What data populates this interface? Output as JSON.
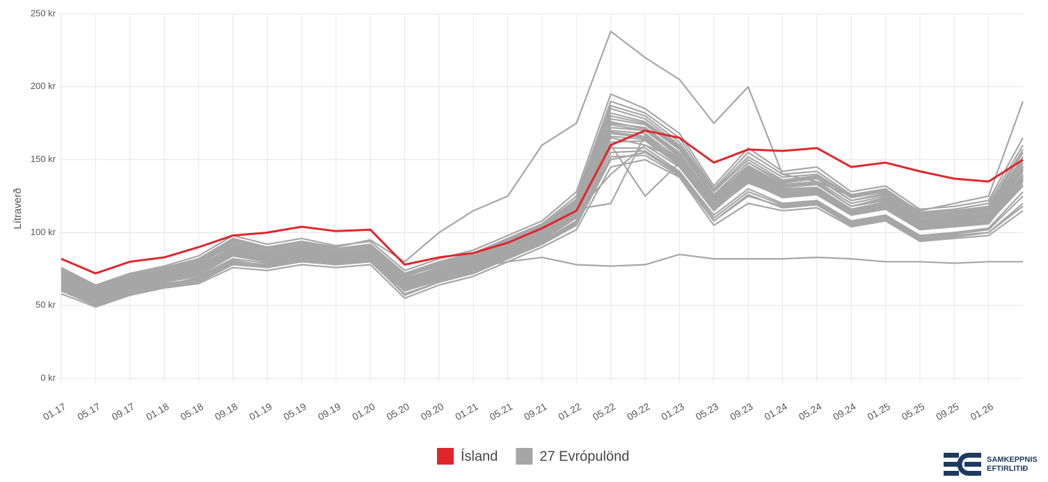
{
  "chart_data": {
    "type": "line",
    "y_label": "Lítraverð",
    "categories": [
      "01.17",
      "05.17",
      "09.17",
      "01.18",
      "05.18",
      "09.18",
      "01.19",
      "05.19",
      "09.19",
      "01.20",
      "05.20",
      "09.20",
      "01.21",
      "05.21",
      "09.21",
      "01.22",
      "05.22",
      "09.22",
      "01.23",
      "05.23",
      "09.23",
      "01.24",
      "05.24",
      "09.24",
      "01.25",
      "05.25",
      "09.25",
      "01.26",
      null
    ],
    "ylim": [
      0,
      250
    ],
    "yticks": [
      {
        "value": 0,
        "label": "0 kr"
      },
      {
        "value": 50,
        "label": "50 kr"
      },
      {
        "value": 100,
        "label": "100 kr"
      },
      {
        "value": 150,
        "label": "150 kr"
      },
      {
        "value": 200,
        "label": "200 kr"
      },
      {
        "value": 250,
        "label": "250 kr"
      }
    ],
    "grid": true,
    "legend": [
      {
        "label": "Ísland",
        "color": "#e0262b"
      },
      {
        "label": "27 Evrópulönd",
        "color": "#a6a6a6"
      }
    ],
    "series": [
      {
        "color": "#a6a6a6",
        "values": [
          72,
          62,
          70,
          75,
          82,
          95,
          90,
          94,
          90,
          95,
          80,
          100,
          115,
          125,
          160,
          175,
          238,
          220,
          205,
          175,
          200,
          140,
          135,
          125,
          128,
          115,
          120,
          125,
          190
        ]
      },
      {
        "color": "#a6a6a6",
        "values": [
          62,
          52,
          60,
          65,
          68,
          80,
          78,
          82,
          80,
          82,
          62,
          70,
          76,
          80,
          83,
          78,
          77,
          78,
          85,
          82,
          82,
          82,
          83,
          82,
          80,
          80,
          79,
          80,
          80
        ]
      },
      {
        "color": "#a6a6a6",
        "values": [
          74,
          60,
          68,
          72,
          78,
          92,
          86,
          90,
          86,
          88,
          68,
          76,
          82,
          92,
          102,
          120,
          180,
          175,
          158,
          125,
          148,
          135,
          138,
          122,
          126,
          110,
          112,
          115,
          150
        ]
      },
      {
        "color": "#a6a6a6",
        "values": [
          65,
          54,
          62,
          67,
          72,
          85,
          80,
          84,
          80,
          82,
          62,
          70,
          75,
          85,
          95,
          110,
          165,
          160,
          145,
          115,
          135,
          124,
          126,
          112,
          116,
          102,
          104,
          106,
          135
        ]
      },
      {
        "color": "#a6a6a6",
        "values": [
          70,
          58,
          66,
          71,
          77,
          90,
          84,
          88,
          84,
          87,
          67,
          74,
          80,
          90,
          100,
          118,
          175,
          172,
          155,
          122,
          145,
          132,
          134,
          118,
          124,
          108,
          110,
          112,
          145
        ]
      },
      {
        "color": "#a6a6a6",
        "values": [
          60,
          50,
          58,
          63,
          66,
          78,
          76,
          80,
          78,
          80,
          58,
          66,
          72,
          82,
          92,
          105,
          150,
          155,
          140,
          108,
          125,
          118,
          120,
          106,
          110,
          96,
          98,
          100,
          120
        ]
      },
      {
        "color": "#a6a6a6",
        "values": [
          75,
          63,
          71,
          76,
          82,
          96,
          90,
          94,
          89,
          92,
          72,
          80,
          86,
          96,
          106,
          125,
          190,
          182,
          165,
          130,
          155,
          140,
          142,
          126,
          130,
          114,
          116,
          120,
          160
        ]
      },
      {
        "color": "#a6a6a6",
        "values": [
          66,
          55,
          63,
          68,
          73,
          86,
          80,
          84,
          80,
          83,
          63,
          71,
          77,
          87,
          97,
          113,
          168,
          165,
          148,
          118,
          138,
          126,
          128,
          113,
          118,
          104,
          106,
          108,
          138
        ]
      },
      {
        "color": "#a6a6a6",
        "values": [
          69,
          57,
          64,
          70,
          76,
          89,
          83,
          87,
          83,
          86,
          66,
          73,
          79,
          89,
          99,
          116,
          172,
          170,
          152,
          121,
          142,
          130,
          131,
          116,
          121,
          106,
          109,
          111,
          142
        ]
      },
      {
        "color": "#a6a6a6",
        "values": [
          63,
          52,
          60,
          66,
          70,
          82,
          79,
          83,
          79,
          81,
          60,
          68,
          74,
          84,
          94,
          108,
          158,
          158,
          142,
          112,
          130,
          120,
          122,
          108,
          112,
          98,
          100,
          103,
          128
        ]
      },
      {
        "color": "#a6a6a6",
        "values": [
          71,
          59,
          67,
          72,
          79,
          91,
          85,
          89,
          85,
          88,
          69,
          75,
          81,
          91,
          101,
          119,
          178,
          174,
          157,
          124,
          146,
          133,
          135,
          120,
          125,
          109,
          111,
          114,
          148
        ]
      },
      {
        "color": "#a6a6a6",
        "values": [
          67,
          56,
          64,
          69,
          74,
          87,
          81,
          85,
          81,
          84,
          64,
          72,
          78,
          88,
          98,
          114,
          140,
          160,
          150,
          118,
          136,
          127,
          129,
          114,
          119,
          105,
          107,
          109,
          136
        ]
      },
      {
        "color": "#a6a6a6",
        "values": [
          64,
          53,
          61,
          67,
          71,
          84,
          80,
          84,
          80,
          82,
          61,
          69,
          75,
          86,
          96,
          111,
          160,
          125,
          148,
          116,
          134,
          125,
          127,
          112,
          117,
          103,
          105,
          107,
          132
        ]
      },
      {
        "color": "#a6a6a6",
        "values": [
          73,
          61,
          69,
          74,
          80,
          94,
          88,
          92,
          88,
          90,
          70,
          78,
          84,
          94,
          104,
          122,
          185,
          178,
          160,
          128,
          150,
          136,
          139,
          124,
          128,
          112,
          114,
          117,
          155
        ]
      },
      {
        "color": "#a6a6a6",
        "values": [
          58,
          49,
          57,
          62,
          65,
          76,
          74,
          78,
          76,
          78,
          55,
          64,
          70,
          80,
          90,
          102,
          145,
          150,
          138,
          105,
          120,
          115,
          117,
          104,
          108,
          94,
          96,
          98,
          115
        ]
      },
      {
        "color": "#a6a6a6",
        "values": [
          76,
          64,
          72,
          77,
          84,
          98,
          92,
          96,
          91,
          94,
          74,
          82,
          88,
          98,
          108,
          128,
          195,
          185,
          168,
          132,
          158,
          142,
          145,
          128,
          132,
          116,
          118,
          122,
          165
        ]
      },
      {
        "color": "#a6a6a6",
        "values": [
          68,
          57,
          65,
          70,
          75,
          88,
          82,
          86,
          82,
          85,
          65,
          72,
          78,
          88,
          98,
          115,
          170,
          168,
          150,
          120,
          140,
          128,
          130,
          115,
          120,
          105,
          108,
          110,
          140
        ]
      },
      {
        "color": "#a6a6a6",
        "values": [
          66,
          54,
          62,
          68,
          73,
          85,
          81,
          85,
          81,
          83,
          62,
          70,
          76,
          86,
          96,
          112,
          162,
          163,
          146,
          117,
          137,
          126,
          127,
          113,
          117,
          103,
          105,
          108,
          133
        ]
      },
      {
        "color": "#a6a6a6",
        "values": [
          70,
          59,
          66,
          72,
          77,
          90,
          85,
          89,
          84,
          87,
          68,
          74,
          80,
          90,
          100,
          117,
          176,
          171,
          154,
          123,
          144,
          131,
          133,
          118,
          123,
          107,
          110,
          113,
          146
        ]
      },
      {
        "color": "#a6a6a6",
        "values": [
          62,
          51,
          59,
          64,
          69,
          81,
          77,
          81,
          78,
          80,
          60,
          67,
          73,
          83,
          93,
          107,
          155,
          156,
          141,
          110,
          128,
          119,
          121,
          107,
          111,
          97,
          99,
          102,
          125
        ]
      },
      {
        "color": "#a6a6a6",
        "values": [
          72,
          60,
          68,
          73,
          79,
          93,
          87,
          91,
          87,
          89,
          70,
          77,
          83,
          93,
          103,
          121,
          182,
          176,
          159,
          126,
          148,
          134,
          137,
          122,
          127,
          111,
          113,
          116,
          152
        ]
      },
      {
        "color": "#a6a6a6",
        "values": [
          65,
          55,
          63,
          68,
          72,
          86,
          80,
          84,
          80,
          83,
          63,
          70,
          76,
          86,
          96,
          112,
          166,
          164,
          147,
          117,
          136,
          125,
          127,
          112,
          118,
          103,
          105,
          107,
          137
        ]
      },
      {
        "color": "#a6a6a6",
        "values": [
          69,
          58,
          65,
          71,
          76,
          89,
          83,
          87,
          83,
          86,
          66,
          73,
          79,
          89,
          99,
          116,
          120,
          167,
          151,
          121,
          141,
          129,
          131,
          116,
          121,
          106,
          108,
          111,
          143
        ]
      },
      {
        "color": "#a6a6a6",
        "values": [
          67,
          56,
          63,
          69,
          74,
          87,
          82,
          86,
          82,
          84,
          64,
          71,
          77,
          87,
          97,
          114,
          169,
          166,
          149,
          119,
          139,
          127,
          129,
          114,
          119,
          105,
          107,
          109,
          139
        ]
      },
      {
        "color": "#a6a6a6",
        "values": [
          74,
          62,
          70,
          75,
          81,
          95,
          89,
          93,
          88,
          91,
          71,
          79,
          85,
          95,
          105,
          123,
          187,
          180,
          162,
          129,
          152,
          138,
          140,
          125,
          129,
          113,
          115,
          118,
          157
        ]
      },
      {
        "color": "#a6a6a6",
        "values": [
          61,
          50,
          58,
          64,
          67,
          79,
          77,
          81,
          79,
          81,
          57,
          66,
          72,
          82,
          92,
          106,
          152,
          153,
          139,
          108,
          126,
          117,
          119,
          105,
          109,
          95,
          97,
          100,
          118
        ]
      },
      {
        "color": "#a6a6a6",
        "values": [
          70,
          58,
          66,
          71,
          77,
          90,
          84,
          88,
          84,
          86,
          67,
          74,
          80,
          90,
          100,
          118,
          174,
          170,
          153,
          122,
          143,
          131,
          133,
          118,
          122,
          107,
          109,
          112,
          144
        ]
      },
      {
        "name": "Ísland",
        "color": "#e0262b",
        "values": [
          82,
          72,
          80,
          83,
          90,
          98,
          100,
          104,
          101,
          102,
          78,
          83,
          86,
          93,
          103,
          115,
          160,
          170,
          165,
          148,
          157,
          156,
          158,
          145,
          148,
          142,
          137,
          135,
          150
        ]
      }
    ]
  },
  "logo": {
    "lines": [
      "SAMKEPPNIS",
      "EFTIRLITIÐ"
    ]
  }
}
